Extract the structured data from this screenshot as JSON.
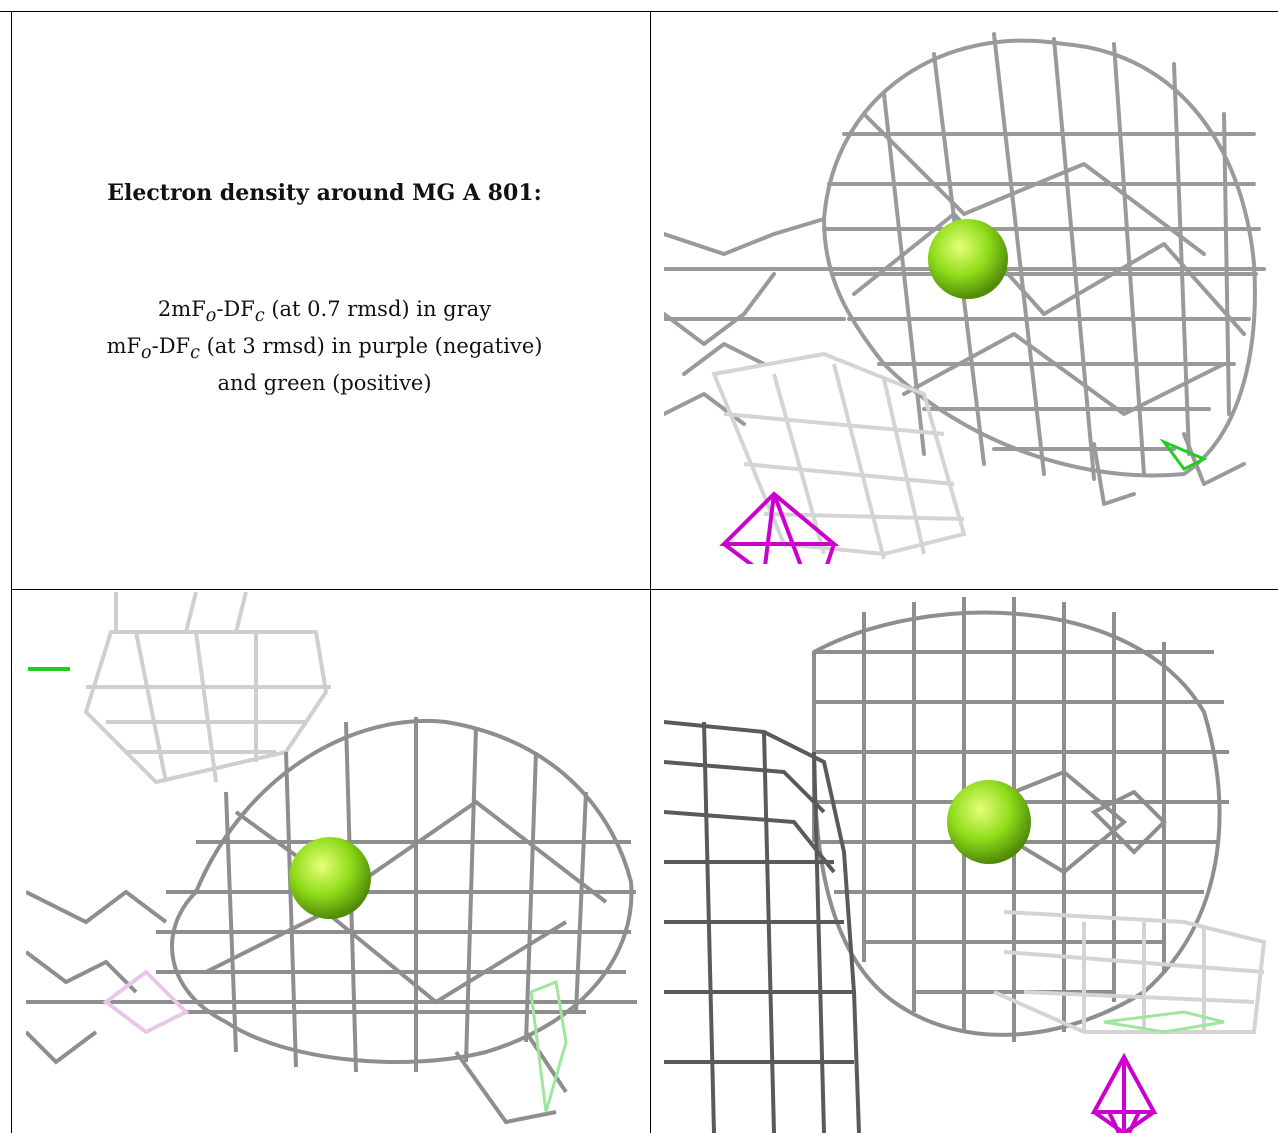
{
  "caption": {
    "title": "Electron density around MG A 801:",
    "line1_prefix": "2mF",
    "line1_sub1": "o",
    "line1_mid": "-DF",
    "line1_sub2": "c",
    "line1_suffix": " (at 0.7 rmsd) in gray",
    "line2_prefix": "mF",
    "line2_sub1": "o",
    "line2_mid": "-DF",
    "line2_sub2": "c",
    "line2_suffix": " (at 3 rmsd) in purple (negative)",
    "line3": "and green (positive)"
  },
  "colors": {
    "mesh_gray": "#8e8e8e",
    "mesh_light": "#cfcfcf",
    "mesh_dark": "#5a5a5a",
    "atom_fill": "#8fdc1a",
    "negative": "#cc00cc",
    "positive": "#22cc22"
  }
}
